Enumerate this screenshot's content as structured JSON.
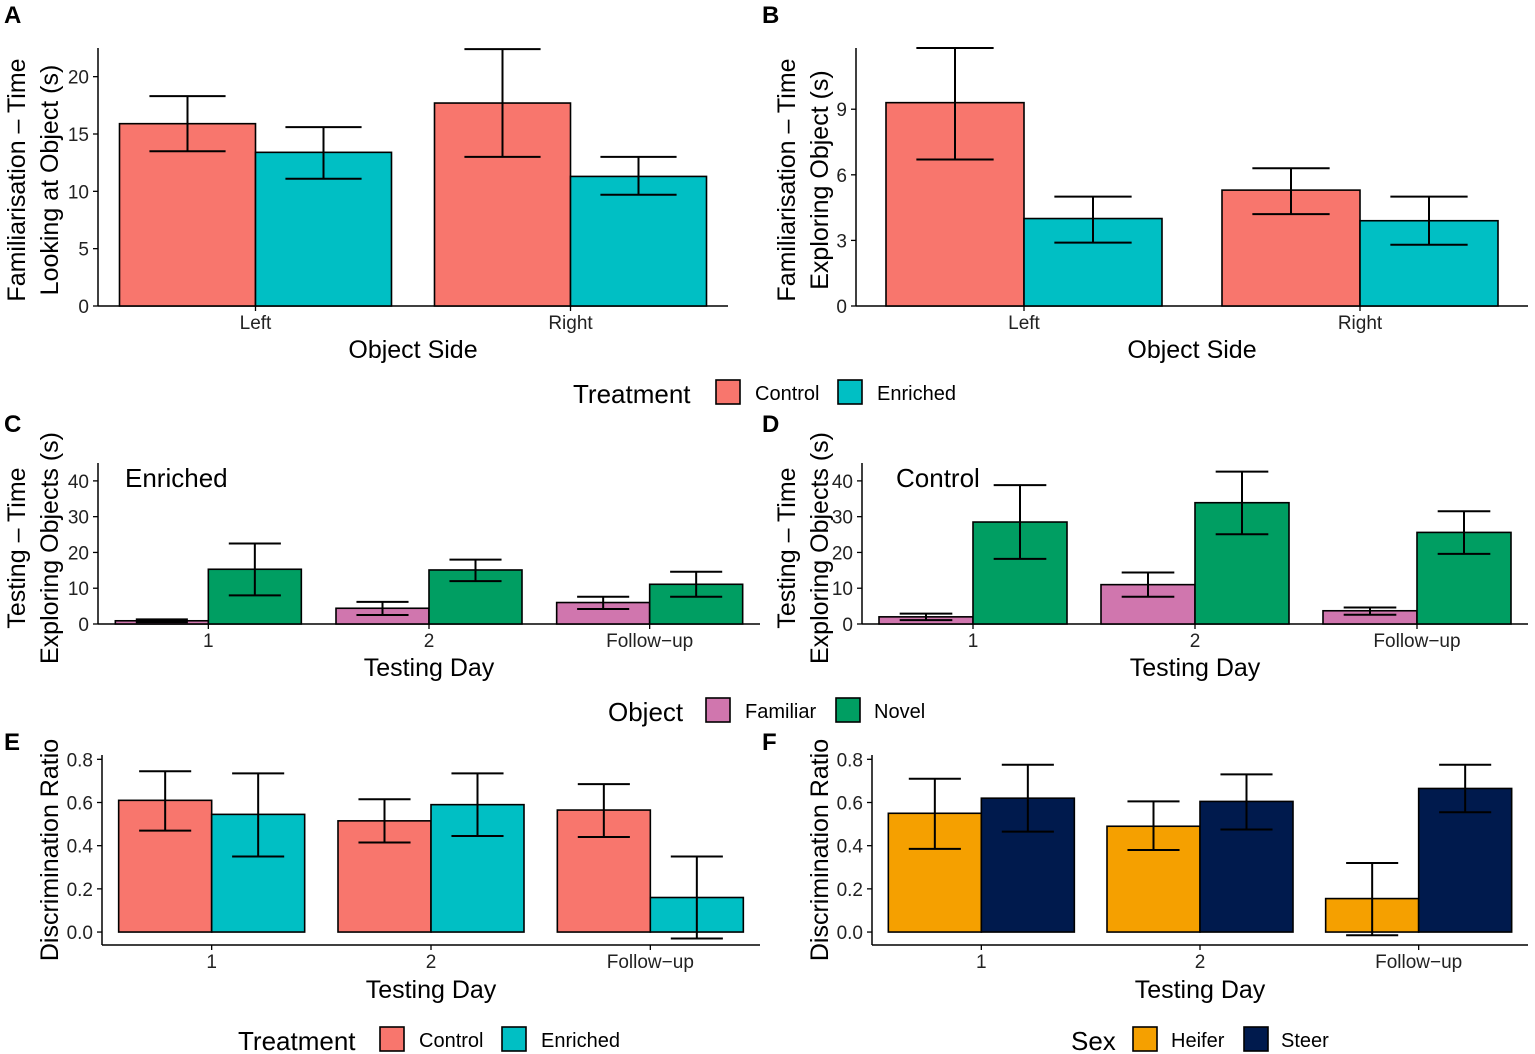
{
  "panels": {
    "A": "A",
    "B": "B",
    "C": "C",
    "D": "D",
    "E": "E",
    "F": "F"
  },
  "colors": {
    "control": "#F8766D",
    "enriched": "#00BFC4",
    "familiar": "#D076AE",
    "novel": "#009E62",
    "heifer": "#F5A000",
    "steer": "#001A4D"
  },
  "legends": {
    "treatment_top": {
      "title": "Treatment",
      "items": [
        "Control",
        "Enriched"
      ]
    },
    "object": {
      "title": "Object",
      "items": [
        "Familiar",
        "Novel"
      ]
    },
    "treatment_bottom": {
      "title": "Treatment",
      "items": [
        "Control",
        "Enriched"
      ]
    },
    "sex": {
      "title": "Sex",
      "items": [
        "Heifer",
        "Steer"
      ]
    }
  },
  "chart_data": [
    {
      "panel": "A",
      "type": "bar",
      "xlabel": "Object Side",
      "ylabel": [
        "Familiarisation – Time",
        "Looking at Object (s)"
      ],
      "categories": [
        "Left",
        "Right"
      ],
      "ylim": [
        0,
        22.5
      ],
      "yticks": [
        0,
        5,
        10,
        15,
        20
      ],
      "series": [
        {
          "name": "Control",
          "color": "#F8766D",
          "values": [
            15.9,
            17.7
          ],
          "err_low": [
            13.5,
            13.0
          ],
          "err_high": [
            18.3,
            22.4
          ]
        },
        {
          "name": "Enriched",
          "color": "#00BFC4",
          "values": [
            13.4,
            11.3
          ],
          "err_low": [
            11.1,
            9.7
          ],
          "err_high": [
            15.6,
            13.0
          ]
        }
      ]
    },
    {
      "panel": "B",
      "type": "bar",
      "xlabel": "Object Side",
      "ylabel": [
        "Familiarisation – Time",
        "Exploring Object (s)"
      ],
      "categories": [
        "Left",
        "Right"
      ],
      "ylim": [
        0,
        11.8
      ],
      "yticks": [
        0,
        3,
        6,
        9
      ],
      "series": [
        {
          "name": "Control",
          "color": "#F8766D",
          "values": [
            9.3,
            5.3
          ],
          "err_low": [
            6.7,
            4.2
          ],
          "err_high": [
            11.8,
            6.3
          ]
        },
        {
          "name": "Enriched",
          "color": "#00BFC4",
          "values": [
            4.0,
            3.9
          ],
          "err_low": [
            2.9,
            2.8
          ],
          "err_high": [
            5.0,
            5.0
          ]
        }
      ]
    },
    {
      "panel": "C",
      "type": "bar",
      "annotation": "Enriched",
      "xlabel": "Testing Day",
      "ylabel": [
        "Testing – Time",
        "Exploring Objects (s)"
      ],
      "categories": [
        "1",
        "2",
        "Follow−up"
      ],
      "ylim": [
        0,
        45
      ],
      "yticks": [
        0,
        10,
        20,
        30,
        40
      ],
      "series": [
        {
          "name": "Familiar",
          "color": "#D076AE",
          "values": [
            0.9,
            4.4,
            6.0
          ],
          "err_low": [
            0.5,
            2.5,
            4.2
          ],
          "err_high": [
            1.3,
            6.2,
            7.6
          ]
        },
        {
          "name": "Novel",
          "color": "#009E62",
          "values": [
            15.3,
            15.1,
            11.1
          ],
          "err_low": [
            8.0,
            12.0,
            7.6
          ],
          "err_high": [
            22.5,
            18.0,
            14.6
          ]
        }
      ]
    },
    {
      "panel": "D",
      "type": "bar",
      "annotation": "Control",
      "xlabel": "Testing Day",
      "ylabel": [
        "Testing – Time",
        "Exploring Objects (s)"
      ],
      "categories": [
        "1",
        "2",
        "Follow−up"
      ],
      "ylim": [
        0,
        45
      ],
      "yticks": [
        0,
        10,
        20,
        30,
        40
      ],
      "series": [
        {
          "name": "Familiar",
          "color": "#D076AE",
          "values": [
            2.0,
            11.0,
            3.7
          ],
          "err_low": [
            1.1,
            7.6,
            2.6
          ],
          "err_high": [
            2.9,
            14.4,
            4.6
          ]
        },
        {
          "name": "Novel",
          "color": "#009E62",
          "values": [
            28.5,
            33.9,
            25.6
          ],
          "err_low": [
            18.2,
            25.1,
            19.6
          ],
          "err_high": [
            38.8,
            42.6,
            31.5
          ]
        }
      ]
    },
    {
      "panel": "E",
      "type": "bar",
      "xlabel": "Testing Day",
      "ylabel": [
        "Discrimination Ratio"
      ],
      "categories": [
        "1",
        "2",
        "Follow−up"
      ],
      "ylim": [
        -0.06,
        0.82
      ],
      "yticks": [
        0.0,
        0.2,
        0.4,
        0.6,
        0.8
      ],
      "ytick_labels": [
        "0.0",
        "0.2",
        "0.4",
        "0.6",
        "0.8"
      ],
      "series": [
        {
          "name": "Control",
          "color": "#F8766D",
          "values": [
            0.61,
            0.515,
            0.565
          ],
          "err_low": [
            0.47,
            0.415,
            0.44
          ],
          "err_high": [
            0.745,
            0.615,
            0.685
          ]
        },
        {
          "name": "Enriched",
          "color": "#00BFC4",
          "values": [
            0.545,
            0.59,
            0.16
          ],
          "err_low": [
            0.35,
            0.445,
            -0.03
          ],
          "err_high": [
            0.735,
            0.735,
            0.35
          ]
        }
      ]
    },
    {
      "panel": "F",
      "type": "bar",
      "xlabel": "Testing Day",
      "ylabel": [
        "Discrimination Ratio"
      ],
      "categories": [
        "1",
        "2",
        "Follow−up"
      ],
      "ylim": [
        -0.06,
        0.82
      ],
      "yticks": [
        0.0,
        0.2,
        0.4,
        0.6,
        0.8
      ],
      "ytick_labels": [
        "0.0",
        "0.2",
        "0.4",
        "0.6",
        "0.8"
      ],
      "series": [
        {
          "name": "Heifer",
          "color": "#F5A000",
          "values": [
            0.55,
            0.49,
            0.155
          ],
          "err_low": [
            0.385,
            0.38,
            -0.015
          ],
          "err_high": [
            0.71,
            0.605,
            0.32
          ]
        },
        {
          "name": "Steer",
          "color": "#001A4D",
          "values": [
            0.62,
            0.605,
            0.665
          ],
          "err_low": [
            0.465,
            0.475,
            0.555
          ],
          "err_high": [
            0.775,
            0.73,
            0.775
          ]
        }
      ]
    }
  ]
}
